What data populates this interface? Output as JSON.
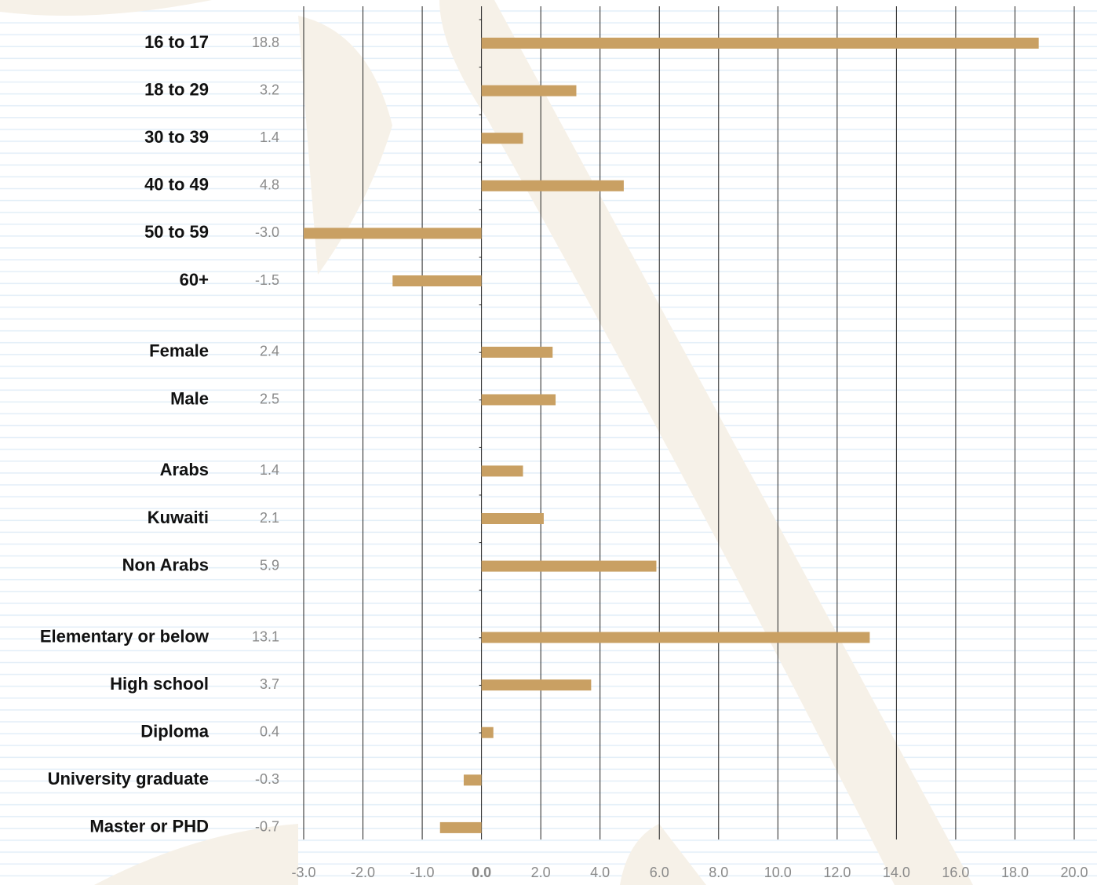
{
  "chart_data": {
    "type": "bar",
    "orientation": "horizontal",
    "categories": [
      "16 to 17",
      "18 to 29",
      "30 to 39",
      "40 to 49",
      "50 to 59",
      "60+",
      null,
      "Female",
      "Male",
      null,
      "Arabs",
      "Kuwaiti",
      "Non Arabs",
      null,
      "Elementary or below",
      "High school",
      "Diploma",
      "University graduate",
      "Master or PHD"
    ],
    "values": [
      18.8,
      3.2,
      1.4,
      4.8,
      -3.0,
      -1.5,
      null,
      2.4,
      2.5,
      null,
      1.4,
      2.1,
      5.9,
      null,
      13.1,
      3.7,
      0.4,
      -0.3,
      -0.7
    ],
    "value_labels": [
      "18.8",
      "3.2",
      "1.4",
      "4.8",
      "-3.0",
      "-1.5",
      null,
      "2.4",
      "2.5",
      null,
      "1.4",
      "2.1",
      "5.9",
      null,
      "13.1",
      "3.7",
      "0.4",
      "-0.3",
      "-0.7"
    ],
    "color": "#c9a063",
    "xlim": [
      -3,
      20
    ],
    "xticks": [
      {
        "value": -3,
        "label": "-3.0"
      },
      {
        "value": -2,
        "label": "-2.0"
      },
      {
        "value": -1,
        "label": "-1.0"
      },
      {
        "value": 0,
        "label": "0.0"
      },
      {
        "value": 2,
        "label": "2.0"
      },
      {
        "value": 4,
        "label": "4.0"
      },
      {
        "value": 6,
        "label": "6.0"
      },
      {
        "value": 8,
        "label": "8.0"
      },
      {
        "value": 10,
        "label": "10.0"
      },
      {
        "value": 12,
        "label": "12.0"
      },
      {
        "value": 14,
        "label": "14.0"
      },
      {
        "value": 16,
        "label": "16.0"
      },
      {
        "value": 18,
        "label": "18.0"
      },
      {
        "value": 20,
        "label": "20.0"
      }
    ],
    "grid": true
  }
}
